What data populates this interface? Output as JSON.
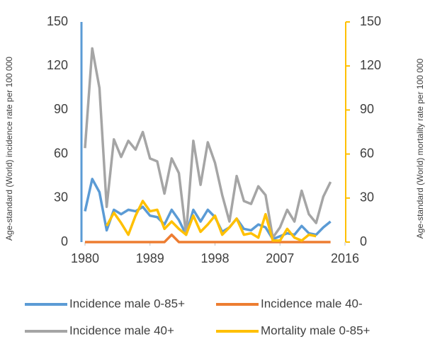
{
  "chart_data": {
    "type": "line",
    "ylabel": "Age-standard   (World)   incidence   rate   per   100  000",
    "y2label": "Age-standard   (World)   mortality   rate   per   100  000",
    "x": [
      1980,
      1981,
      1982,
      1983,
      1984,
      1985,
      1986,
      1987,
      1988,
      1989,
      1990,
      1991,
      1992,
      1993,
      1994,
      1995,
      1996,
      1997,
      1998,
      1999,
      2000,
      2001,
      2002,
      2003,
      2004,
      2005,
      2006,
      2007,
      2008,
      2009,
      2010,
      2011,
      2012,
      2013,
      2014
    ],
    "xlim": [
      1980,
      2016
    ],
    "xticks": [
      1980,
      1989,
      1998,
      2007,
      2016
    ],
    "ylim": [
      0,
      150
    ],
    "yticks": [
      0,
      30,
      60,
      90,
      120,
      150
    ],
    "y2lim": [
      0,
      150
    ],
    "y2ticks": [
      0,
      30,
      60,
      90,
      120,
      150
    ],
    "y_axis_color": "#5b9bd5",
    "y2_axis_color": "#ffc000",
    "series": [
      {
        "name": "Incidence male 0-85+",
        "color": "#5b9bd5",
        "values": [
          21,
          43,
          34,
          8,
          22,
          19,
          22,
          21,
          24,
          18,
          17,
          12,
          22,
          15,
          5,
          22,
          14,
          22,
          17,
          7,
          10,
          16,
          9,
          8,
          12,
          10,
          2,
          4,
          6,
          5,
          11,
          6,
          5,
          10,
          14
        ]
      },
      {
        "name": "Incidence male 40-",
        "color": "#ed7d31",
        "values": [
          0,
          0,
          0,
          0,
          0,
          0,
          0,
          0,
          0,
          0,
          0,
          0,
          5,
          0,
          0,
          0,
          0,
          0,
          0,
          0,
          0,
          0,
          0,
          0,
          0,
          0,
          0,
          0,
          0,
          0,
          0,
          0,
          0,
          0,
          0
        ]
      },
      {
        "name": "Incidence male 40+",
        "color": "#a5a5a5",
        "values": [
          64,
          132,
          105,
          24,
          70,
          58,
          69,
          63,
          75,
          57,
          55,
          33,
          57,
          47,
          5,
          69,
          39,
          68,
          54,
          32,
          14,
          45,
          28,
          26,
          38,
          32,
          3,
          10,
          22,
          14,
          35,
          19,
          13,
          31,
          41
        ]
      },
      {
        "name": "Mortality male 0-85+",
        "color": "#ffc000",
        "axis": "y2",
        "values": [
          null,
          null,
          null,
          11,
          20,
          13,
          5,
          18,
          28,
          21,
          22,
          9,
          14,
          9,
          5,
          18,
          7,
          12,
          18,
          5,
          10,
          16,
          5,
          6,
          3,
          19,
          1,
          1,
          9,
          3,
          1,
          5,
          4,
          null,
          null
        ]
      }
    ]
  }
}
